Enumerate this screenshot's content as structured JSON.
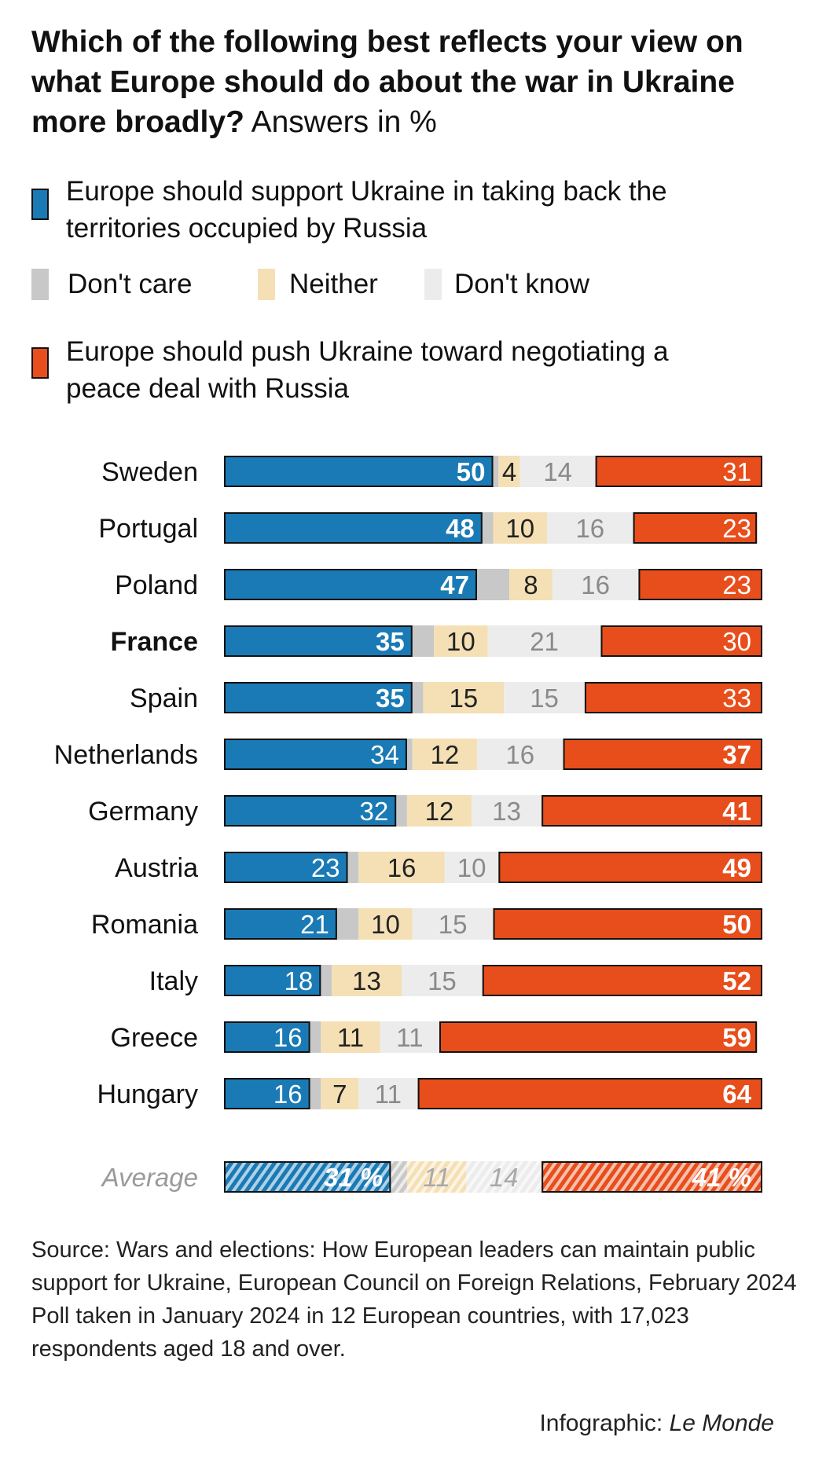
{
  "title": {
    "bold": "Which of the following best reflects your view on what Europe should do about the war in Ukraine more broadly?",
    "normal": "Answers in %"
  },
  "legend": {
    "support": "Europe should support Ukraine in taking back the territories occupied by Russia",
    "dont_care": "Don't care",
    "neither": "Neither",
    "dont_know": "Don't know",
    "push": "Europe should push Ukraine toward negotiating a peace deal with Russia"
  },
  "colors": {
    "support": "#1a7ab5",
    "dont_care": "#c8c8c8",
    "neither": "#f5e0b5",
    "dont_know": "#ececec",
    "push": "#e84e1b"
  },
  "chart_data": {
    "type": "bar",
    "stacked": true,
    "orientation": "horizontal",
    "categories": [
      "Sweden",
      "Portugal",
      "Poland",
      "France",
      "Spain",
      "Netherlands",
      "Germany",
      "Austria",
      "Romania",
      "Italy",
      "Greece",
      "Hungary"
    ],
    "highlight": "France",
    "series": [
      {
        "name": "Europe should support Ukraine in taking back the territories occupied by Russia",
        "values": [
          50,
          48,
          47,
          35,
          35,
          34,
          32,
          23,
          21,
          18,
          16,
          16
        ],
        "labels": [
          "50",
          "48",
          "47",
          "35",
          "35",
          "34",
          "32",
          "23",
          "21",
          "18",
          "16",
          "16"
        ]
      },
      {
        "name": "Don't care",
        "values": [
          1,
          2,
          6,
          4,
          2,
          1,
          2,
          2,
          4,
          2,
          2,
          2
        ],
        "labels": [
          "",
          "",
          "",
          "",
          "",
          "",
          "",
          "",
          "",
          "",
          "",
          ""
        ]
      },
      {
        "name": "Neither",
        "values": [
          4,
          10,
          8,
          10,
          15,
          12,
          12,
          16,
          10,
          13,
          11,
          7
        ],
        "labels": [
          "4",
          "10",
          "8",
          "10",
          "15",
          "12",
          "12",
          "16",
          "10",
          "13",
          "11",
          "7"
        ]
      },
      {
        "name": "Don't know",
        "values": [
          14,
          16,
          16,
          21,
          15,
          16,
          13,
          10,
          15,
          15,
          11,
          11
        ],
        "labels": [
          "14",
          "16",
          "16",
          "21",
          "15",
          "16",
          "13",
          "10",
          "15",
          "15",
          "11",
          "11"
        ]
      },
      {
        "name": "Europe should push Ukraine toward negotiating a peace deal with Russia",
        "values": [
          31,
          23,
          23,
          30,
          33,
          37,
          41,
          49,
          50,
          52,
          59,
          64
        ],
        "labels": [
          "31",
          "23",
          "23",
          "30",
          "33",
          "37",
          "41",
          "49",
          "50",
          "52",
          "59",
          "64"
        ]
      }
    ],
    "average": {
      "label": "Average",
      "values": [
        31,
        3,
        11,
        14,
        41
      ],
      "labels": [
        "31 %",
        "",
        "11",
        "14",
        "41 %"
      ]
    },
    "xlim": [
      0,
      100
    ]
  },
  "source": {
    "line1": "Source: Wars and elections: How European leaders can maintain public support for Ukraine, European Council on Foreign Relations, February 2024",
    "line2": "Poll taken in January 2024 in 12 European countries, with 17,023 respondents aged 18 and over."
  },
  "credit": {
    "prefix": "Infographic:",
    "brand": "Le Monde"
  }
}
